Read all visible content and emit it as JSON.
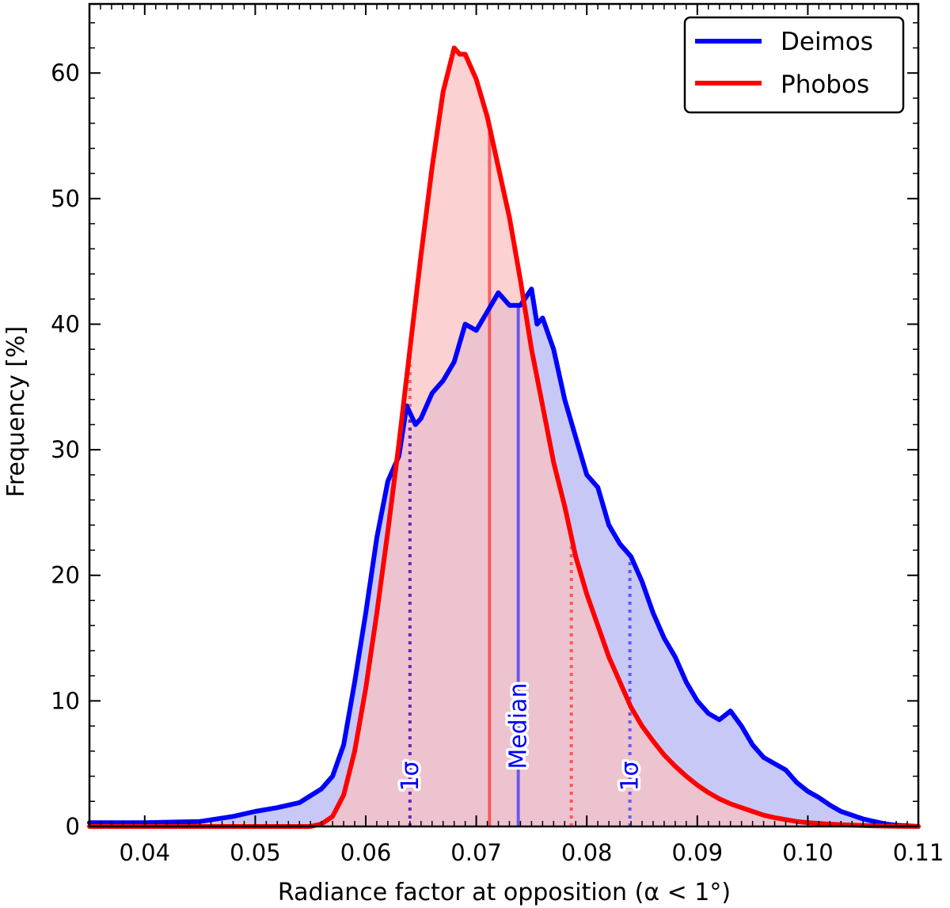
{
  "chart_data": {
    "type": "area",
    "title": "",
    "xlabel": "Radiance factor at opposition (α < 1°)",
    "ylabel": "Frequency [%]",
    "xlim": [
      0.035,
      0.11
    ],
    "ylim": [
      0,
      65.5
    ],
    "xticks": [
      0.04,
      0.05,
      0.06,
      0.07,
      0.08,
      0.09,
      0.1,
      0.11
    ],
    "xtick_labels": [
      "0.04",
      "0.05",
      "0.06",
      "0.07",
      "0.08",
      "0.09",
      "0.10",
      "0.11"
    ],
    "yticks": [
      0,
      10,
      20,
      30,
      40,
      50,
      60
    ],
    "ytick_labels": [
      "0",
      "10",
      "20",
      "30",
      "40",
      "50",
      "60"
    ],
    "grid": false,
    "legend_position": "top-right",
    "series": [
      {
        "name": "Deimos",
        "color": "#0000ff",
        "fill": "#c8c8f7",
        "x": [
          0.035,
          0.04,
          0.045,
          0.048,
          0.05,
          0.052,
          0.054,
          0.056,
          0.057,
          0.058,
          0.059,
          0.06,
          0.061,
          0.062,
          0.063,
          0.0637,
          0.0645,
          0.065,
          0.066,
          0.067,
          0.068,
          0.069,
          0.07,
          0.071,
          0.072,
          0.073,
          0.074,
          0.075,
          0.0755,
          0.076,
          0.077,
          0.078,
          0.079,
          0.08,
          0.081,
          0.082,
          0.083,
          0.084,
          0.085,
          0.086,
          0.087,
          0.088,
          0.089,
          0.09,
          0.091,
          0.092,
          0.093,
          0.094,
          0.095,
          0.096,
          0.097,
          0.098,
          0.099,
          0.1,
          0.101,
          0.102,
          0.103,
          0.104,
          0.105,
          0.106,
          0.107,
          0.108,
          0.11
        ],
        "values": [
          0.3,
          0.3,
          0.4,
          0.8,
          1.2,
          1.5,
          1.9,
          3.0,
          4.0,
          6.5,
          11.5,
          17.0,
          23.0,
          27.5,
          29.5,
          33.5,
          32.0,
          32.5,
          34.5,
          35.5,
          37.0,
          40.0,
          39.5,
          41.0,
          42.5,
          41.5,
          41.5,
          42.8,
          40.0,
          40.5,
          38.0,
          34.0,
          31.0,
          28.0,
          27.0,
          24.0,
          22.5,
          21.5,
          19.5,
          17.0,
          15.0,
          13.5,
          11.5,
          10.0,
          9.0,
          8.5,
          9.2,
          8.0,
          6.5,
          5.5,
          5.0,
          4.5,
          3.5,
          2.8,
          2.3,
          1.7,
          1.2,
          0.9,
          0.6,
          0.4,
          0.2,
          0.1,
          0.0
        ]
      },
      {
        "name": "Phobos",
        "color": "#ff0000",
        "fill": "#f9c2c2",
        "x": [
          0.035,
          0.055,
          0.056,
          0.057,
          0.058,
          0.059,
          0.06,
          0.061,
          0.062,
          0.063,
          0.064,
          0.065,
          0.066,
          0.067,
          0.068,
          0.0685,
          0.069,
          0.07,
          0.071,
          0.072,
          0.073,
          0.074,
          0.075,
          0.076,
          0.077,
          0.078,
          0.079,
          0.08,
          0.081,
          0.082,
          0.083,
          0.084,
          0.085,
          0.086,
          0.087,
          0.088,
          0.089,
          0.09,
          0.091,
          0.092,
          0.093,
          0.094,
          0.095,
          0.096,
          0.097,
          0.098,
          0.099,
          0.1,
          0.102,
          0.104,
          0.106,
          0.108,
          0.11
        ],
        "values": [
          0.0,
          0.0,
          0.2,
          0.8,
          2.5,
          6.0,
          11.0,
          17.0,
          23.5,
          30.5,
          38.0,
          45.5,
          52.5,
          58.5,
          62.0,
          61.5,
          61.5,
          59.5,
          56.5,
          52.5,
          48.5,
          43.5,
          38.0,
          33.5,
          29.0,
          25.5,
          21.5,
          18.5,
          16.0,
          13.5,
          11.5,
          9.5,
          8.0,
          6.8,
          5.7,
          4.8,
          4.0,
          3.3,
          2.7,
          2.2,
          1.8,
          1.5,
          1.2,
          0.9,
          0.7,
          0.55,
          0.4,
          0.3,
          0.18,
          0.1,
          0.05,
          0.02,
          0.0
        ]
      }
    ],
    "vertical_lines": [
      {
        "series": "Phobos",
        "kind": "median",
        "x": 0.0712,
        "style": "solid"
      },
      {
        "series": "Deimos",
        "kind": "median",
        "x": 0.0738,
        "style": "solid"
      },
      {
        "series": "Phobos",
        "kind": "1sigma",
        "x": 0.064,
        "style": "dotted"
      },
      {
        "series": "Phobos",
        "kind": "1sigma",
        "x": 0.0786,
        "style": "dotted"
      },
      {
        "series": "Deimos",
        "kind": "1sigma",
        "x": 0.064,
        "style": "dotted"
      },
      {
        "series": "Deimos",
        "kind": "1sigma",
        "x": 0.0839,
        "style": "dotted"
      }
    ],
    "annotations": [
      {
        "text": "1σ",
        "x": 0.064,
        "y": 4,
        "color": "#0000ff",
        "rotation": -90
      },
      {
        "text": "Median",
        "x": 0.0738,
        "y": 8,
        "color": "#0000ff",
        "rotation": -90
      },
      {
        "text": "1σ",
        "x": 0.0839,
        "y": 4,
        "color": "#0000ff",
        "rotation": -90
      }
    ]
  }
}
